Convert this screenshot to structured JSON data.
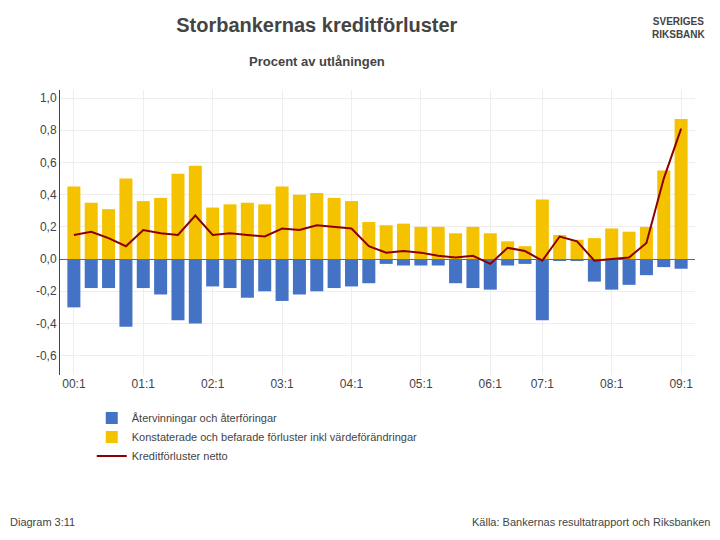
{
  "chart_data": {
    "type": "bar",
    "title": "Storbankernas kreditförluster",
    "subtitle": "Procent av utlåningen",
    "categories": [
      "00:1",
      null,
      null,
      null,
      "01:1",
      null,
      null,
      null,
      "02:1",
      null,
      null,
      null,
      "03:1",
      null,
      null,
      null,
      "04:1",
      null,
      null,
      null,
      "05:1",
      null,
      null,
      null,
      "06:1",
      null,
      null,
      "07:1",
      null,
      null,
      null,
      "08:1",
      null,
      null,
      null,
      "09:1"
    ],
    "series": [
      {
        "name": "Återvinningar och återföringar",
        "type": "bar",
        "color": "#4472C4",
        "values": [
          -0.3,
          -0.18,
          -0.18,
          -0.42,
          -0.18,
          -0.22,
          -0.38,
          -0.4,
          -0.17,
          -0.18,
          -0.24,
          -0.2,
          -0.26,
          -0.22,
          -0.2,
          -0.18,
          -0.17,
          -0.15,
          -0.03,
          -0.04,
          -0.04,
          -0.04,
          -0.15,
          -0.18,
          -0.19,
          -0.04,
          -0.03,
          -0.38,
          -0.01,
          -0.01,
          -0.14,
          -0.19,
          -0.16,
          -0.1,
          -0.05,
          -0.06
        ]
      },
      {
        "name": "Konstaterade och befarade förluster inkl värdeförändringar",
        "type": "bar",
        "color": "#F5C200",
        "values": [
          0.45,
          0.35,
          0.31,
          0.5,
          0.36,
          0.38,
          0.53,
          0.58,
          0.32,
          0.34,
          0.35,
          0.34,
          0.45,
          0.4,
          0.41,
          0.38,
          0.36,
          0.23,
          0.21,
          0.22,
          0.2,
          0.2,
          0.16,
          0.2,
          0.16,
          0.11,
          0.08,
          0.37,
          0.15,
          0.12,
          0.13,
          0.19,
          0.17,
          0.2,
          0.55,
          0.87
        ]
      },
      {
        "name": "Kreditförluster netto",
        "type": "line",
        "color": "#8B0000",
        "values": [
          0.15,
          0.17,
          0.13,
          0.08,
          0.18,
          0.16,
          0.15,
          0.27,
          0.15,
          0.16,
          0.15,
          0.14,
          0.19,
          0.18,
          0.21,
          0.2,
          0.19,
          0.08,
          0.04,
          0.05,
          0.04,
          0.02,
          0.01,
          0.02,
          -0.03,
          0.07,
          0.05,
          -0.01,
          0.14,
          0.11,
          -0.01,
          0.0,
          0.01,
          0.1,
          0.5,
          0.81
        ]
      }
    ],
    "ylim": [
      -0.72,
      1.05
    ],
    "yticks": [
      {
        "value": -0.6,
        "label": "-0,6"
      },
      {
        "value": -0.4,
        "label": "-0,4"
      },
      {
        "value": -0.2,
        "label": "-0,2"
      },
      {
        "value": 0.0,
        "label": "0,0"
      },
      {
        "value": 0.2,
        "label": "0,2"
      },
      {
        "value": 0.4,
        "label": "0,4"
      },
      {
        "value": 0.6,
        "label": "0,6"
      },
      {
        "value": 0.8,
        "label": "0,8"
      },
      {
        "value": 1.0,
        "label": "1,0"
      }
    ],
    "grid": true,
    "legend": "bottom",
    "annotations": [
      "Diagram 3:11",
      "Källa: Bankernas resultatrapport och Riksbanken",
      "SVERIGES\nRIKSBANK"
    ]
  }
}
